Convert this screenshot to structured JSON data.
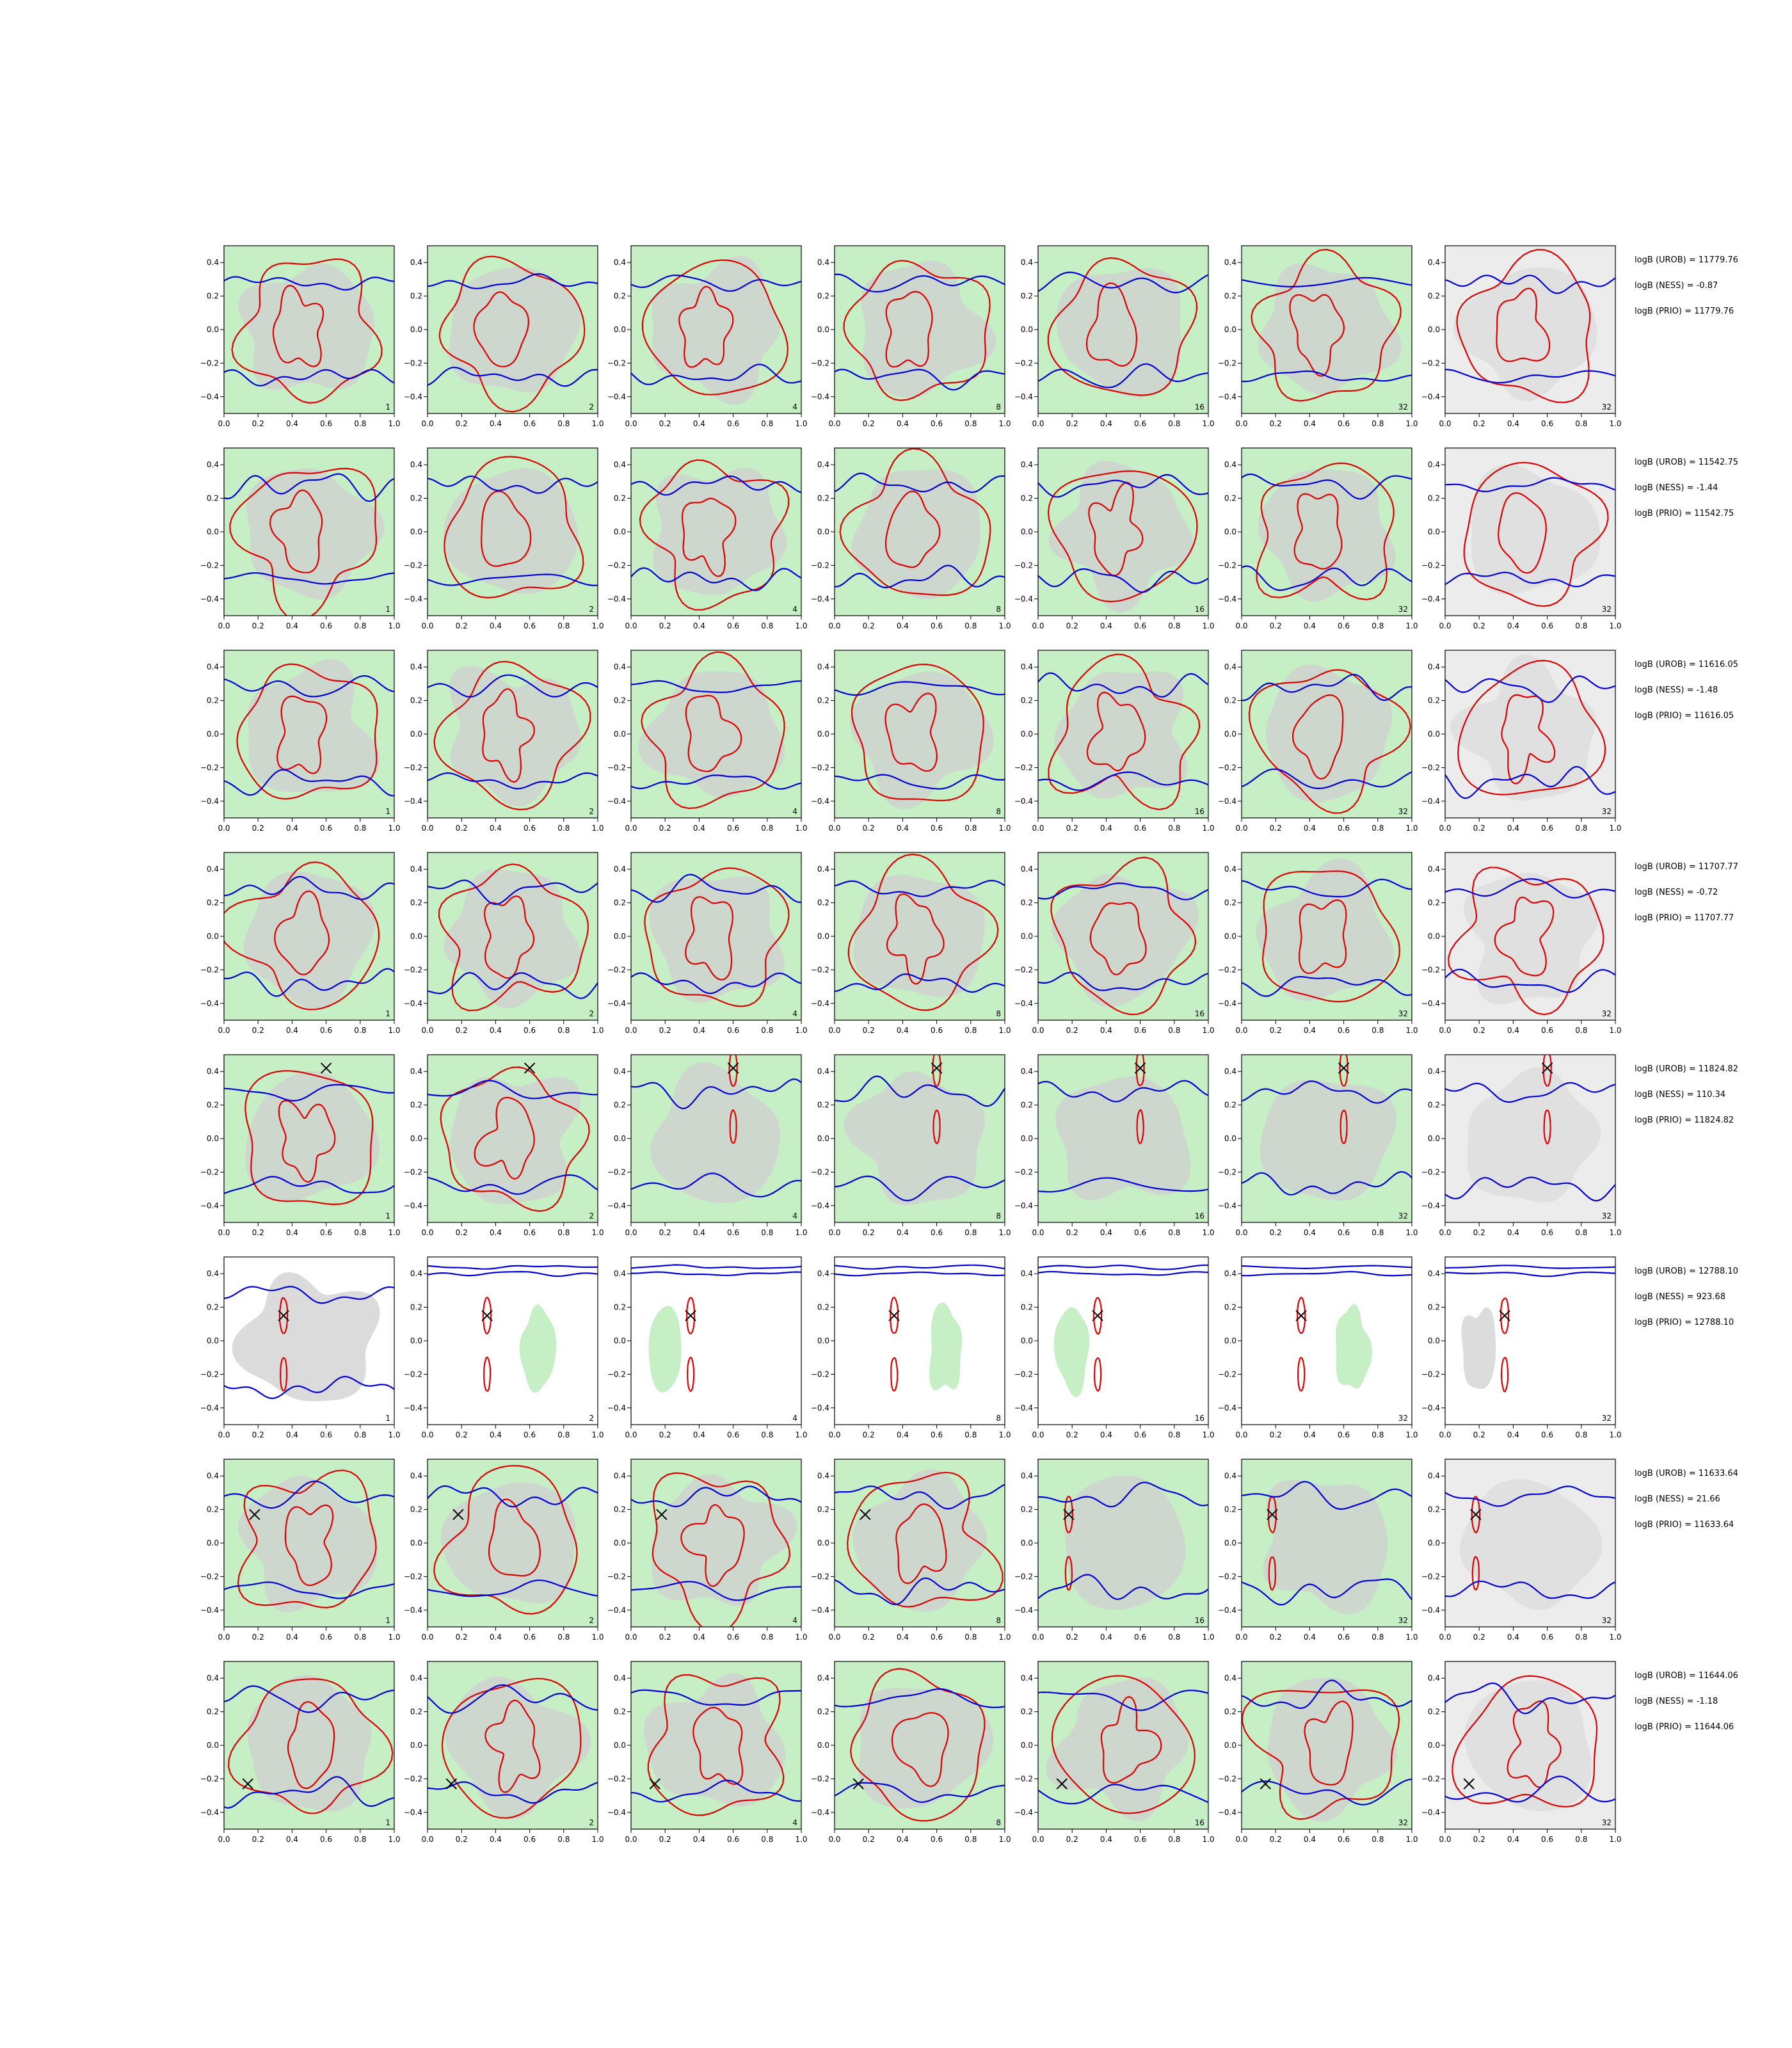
{
  "figure": {
    "rows": 8,
    "cols": 7,
    "panel_labels": [
      "1",
      "2",
      "4",
      "8",
      "16",
      "32",
      "32"
    ],
    "colors": {
      "red_contour": "#e00000",
      "blue_contour": "#0000dd",
      "green_fill": "#c6efc6",
      "gray_fill": "#cfcfcf",
      "light_gray_fill": "#ececec",
      "marker": "#000000"
    },
    "axis": {
      "xlim": [
        0.0,
        1.0
      ],
      "ylim": [
        -0.5,
        0.5
      ],
      "xticks": [
        "0.0",
        "0.2",
        "0.4",
        "0.6",
        "0.8",
        "1.0"
      ],
      "yticks": [
        "0.4",
        "0.2",
        "0.0",
        "−0.2",
        "−0.4"
      ]
    },
    "rows_stats": [
      {
        "urob": "logB (UROB) = 11779.76",
        "ness": "logB (NESS) = -0.87",
        "prio": "logB (PRIO) = 11779.76"
      },
      {
        "urob": "logB (UROB) = 11542.75",
        "ness": "logB (NESS) = -1.44",
        "prio": "logB (PRIO) = 11542.75"
      },
      {
        "urob": "logB (UROB) = 11616.05",
        "ness": "logB (NESS) = -1.48",
        "prio": "logB (PRIO) = 11616.05"
      },
      {
        "urob": "logB (UROB) = 11707.77",
        "ness": "logB (NESS) = -0.72",
        "prio": "logB (PRIO) = 11707.77"
      },
      {
        "urob": "logB (UROB) = 11824.82",
        "ness": "logB (NESS) = 110.34",
        "prio": "logB (PRIO) = 11824.82"
      },
      {
        "urob": "logB (UROB) = 12788.10",
        "ness": "logB (NESS) = 923.68",
        "prio": "logB (PRIO) = 12788.10"
      },
      {
        "urob": "logB (UROB) = 11633.64",
        "ness": "logB (NESS) = 21.66",
        "prio": "logB (PRIO) = 11633.64"
      },
      {
        "urob": "logB (UROB) = 11644.06",
        "ness": "logB (NESS) = -1.18",
        "prio": "logB (PRIO) = 11644.06"
      }
    ],
    "markers": [
      null,
      null,
      null,
      null,
      {
        "x": 0.6,
        "y": 0.42
      },
      {
        "x": 0.35,
        "y": 0.15
      },
      {
        "x": 0.18,
        "y": 0.17
      },
      {
        "x": 0.14,
        "y": -0.23
      }
    ]
  },
  "chart_data": {
    "type": "contour",
    "title": "",
    "xlabel": "",
    "ylabel": "",
    "xlim": [
      0.0,
      1.0
    ],
    "ylim": [
      -0.5,
      0.5
    ],
    "grid": false,
    "legend": "none",
    "series": [
      {
        "values": [
          "logB (UROB) = 11779.76",
          "logB (NESS) = -0.87",
          "logB (PRIO) = 11779.76"
        ]
      },
      {
        "values": [
          "logB (UROB) = 11542.75",
          "logB (NESS) = -1.44",
          "logB (PRIO) = 11542.75"
        ]
      },
      {
        "values": [
          "logB (UROB) = 11616.05",
          "logB (NESS) = -1.48",
          "logB (PRIO) = 11616.05"
        ]
      },
      {
        "values": [
          "logB (UROB) = 11707.77",
          "logB (NESS) = -0.72",
          "logB (PRIO) = 11707.77"
        ]
      },
      {
        "values": [
          "logB (UROB) = 11824.82",
          "logB (NESS) = 110.34",
          "logB (PRIO) = 11824.82"
        ]
      },
      {
        "values": [
          "logB (UROB) = 12788.10",
          "logB (NESS) = 923.68",
          "logB (PRIO) = 12788.10"
        ]
      },
      {
        "values": [
          "logB (UROB) = 11633.64",
          "logB (NESS) = 21.66",
          "logB (PRIO) = 11633.64"
        ]
      },
      {
        "values": [
          "logB (UROB) = 11644.06",
          "logB (NESS) = -1.18",
          "logB (PRIO) = 11644.06"
        ]
      }
    ]
  }
}
